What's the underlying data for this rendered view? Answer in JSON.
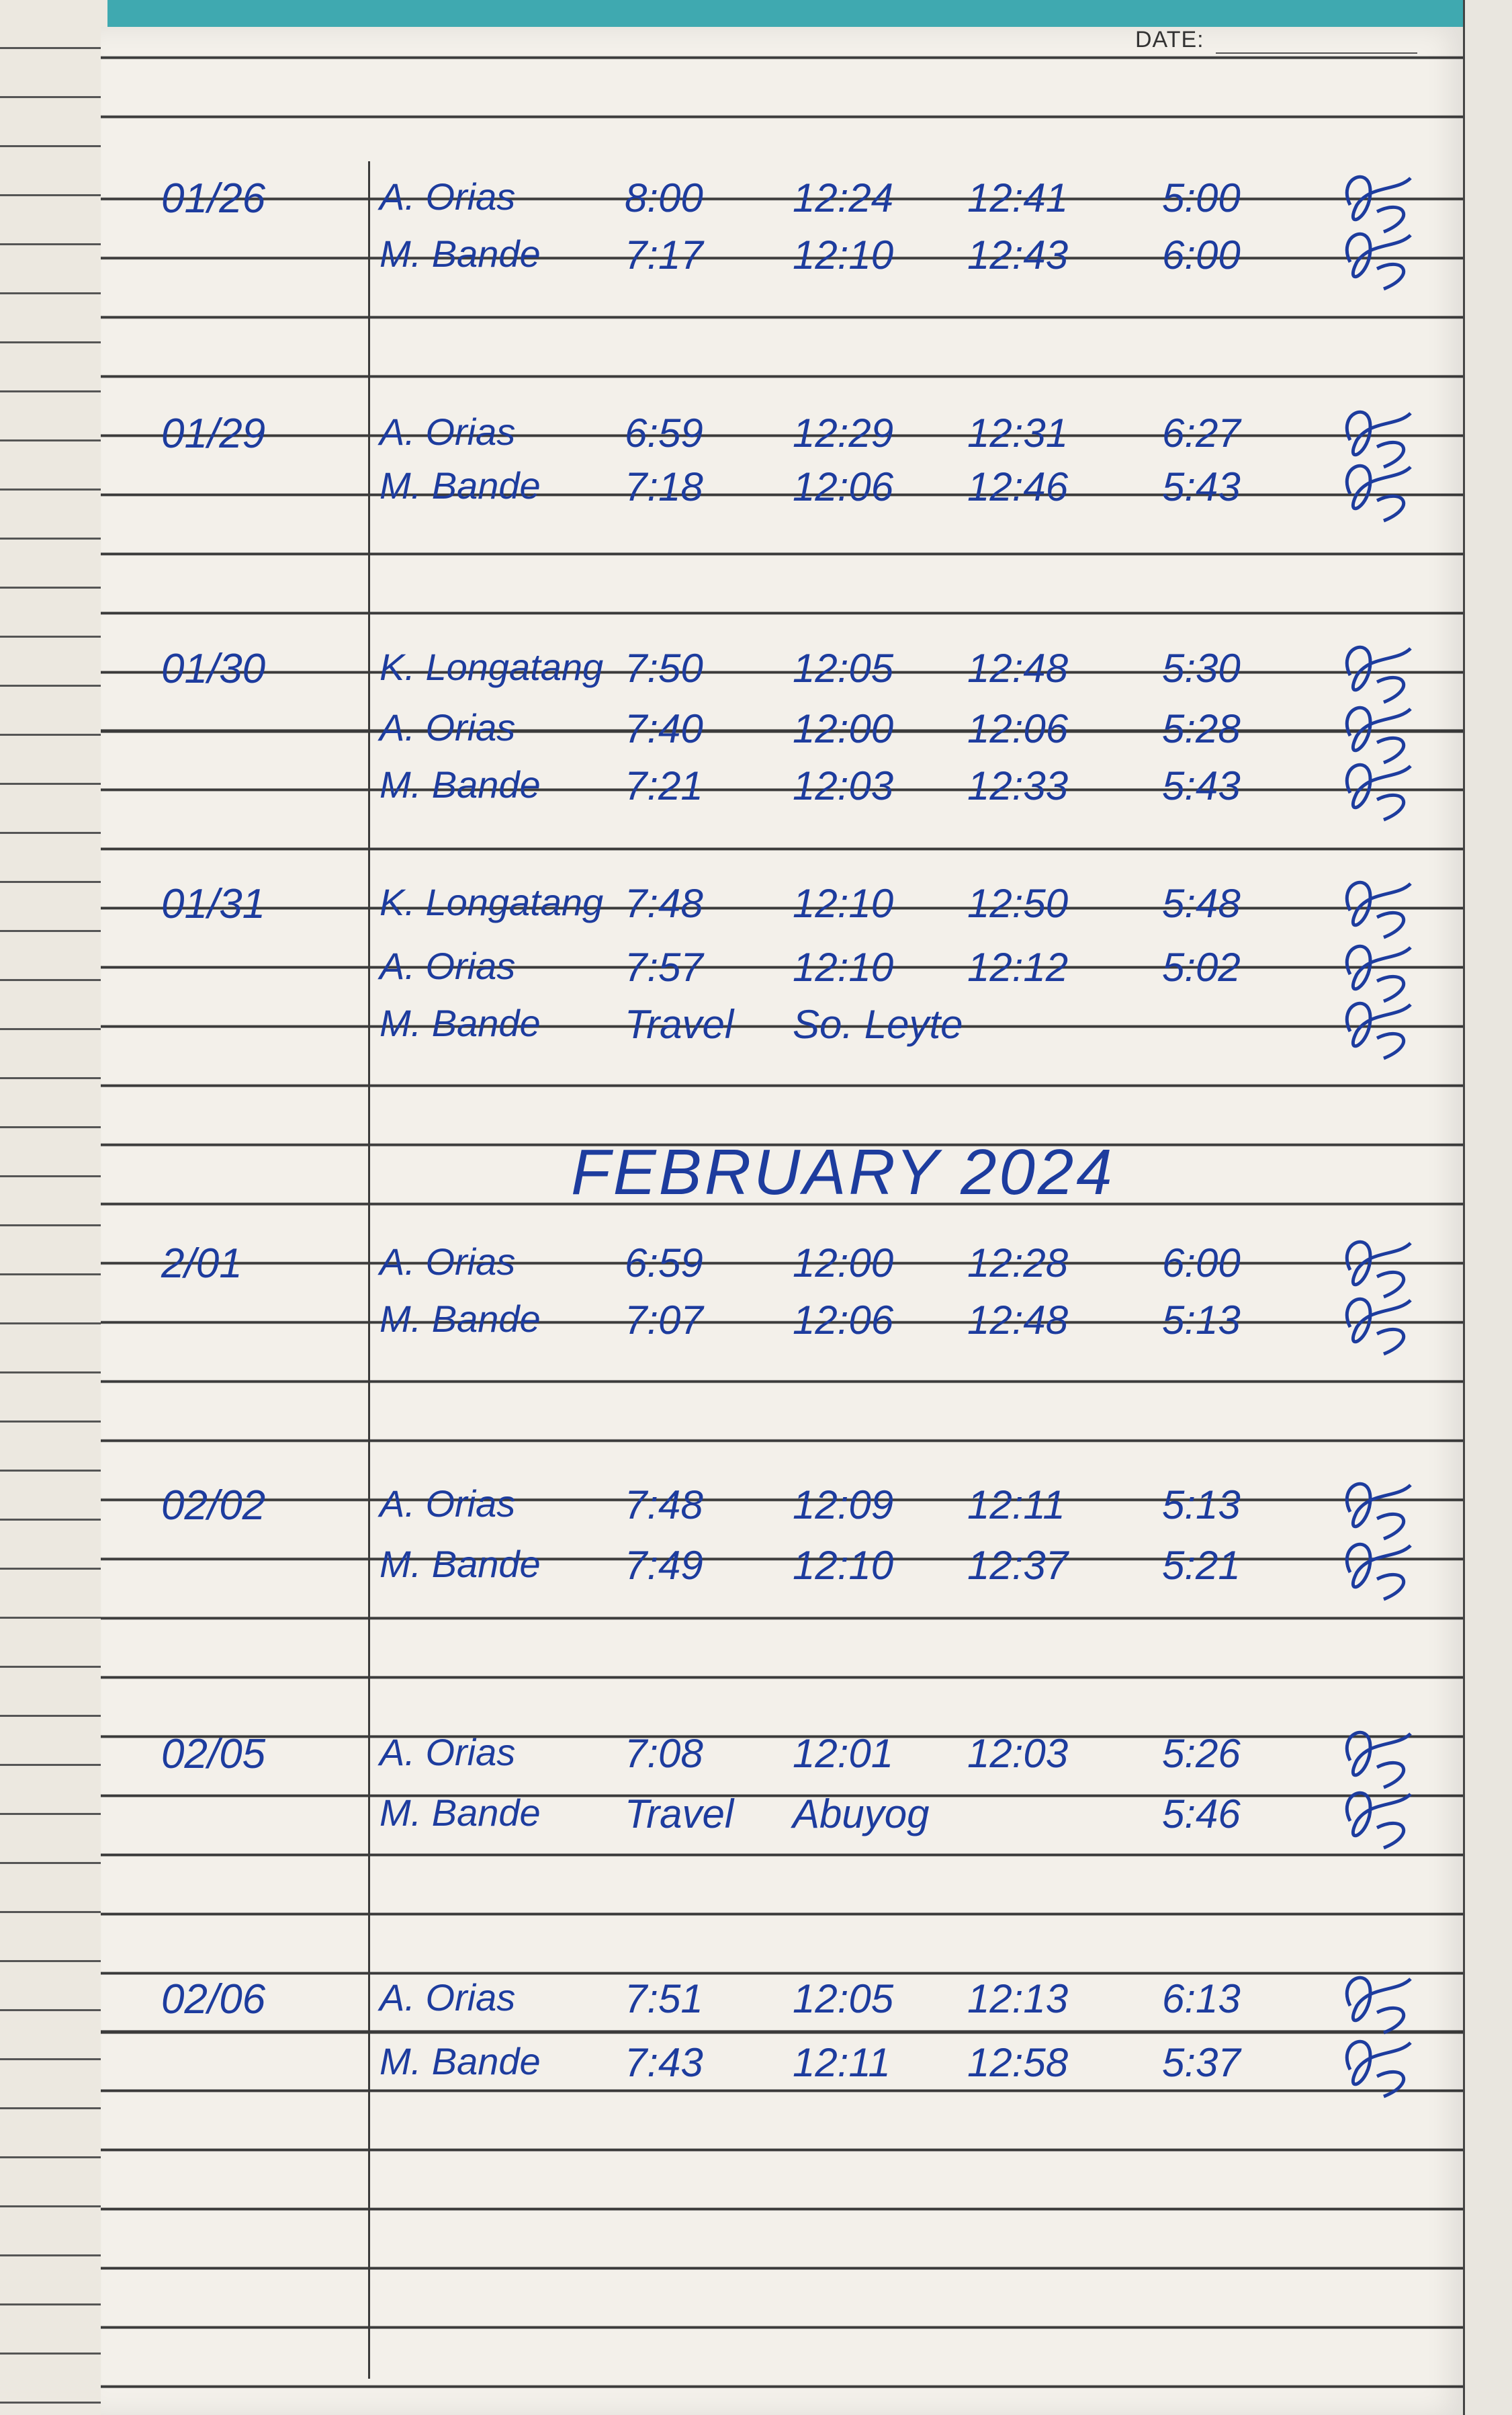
{
  "header": {
    "date_label": "DATE:"
  },
  "ink_color": "#1d3c9e",
  "entries": [
    {
      "date": "01/26",
      "rows": [
        {
          "name": "A. Orias",
          "times": [
            "8:00",
            "12:24",
            "12:41",
            "5:00"
          ]
        },
        {
          "name": "M. Bande",
          "times": [
            "7:17",
            "12:10",
            "12:43",
            "6:00"
          ]
        }
      ]
    },
    {
      "date": "01/29",
      "rows": [
        {
          "name": "A. Orias",
          "times": [
            "6:59",
            "12:29",
            "12:31",
            "6:27"
          ]
        },
        {
          "name": "M. Bande",
          "times": [
            "7:18",
            "12:06",
            "12:46",
            "5:43"
          ]
        }
      ]
    },
    {
      "date": "01/30",
      "rows": [
        {
          "name": "K. Longatang",
          "times": [
            "7:50",
            "12:05",
            "12:48",
            "5:30"
          ]
        },
        {
          "name": "A. Orias",
          "times": [
            "7:40",
            "12:00",
            "12:06",
            "5:28"
          ]
        },
        {
          "name": "M. Bande",
          "times": [
            "7:21",
            "12:03",
            "12:33",
            "5:43"
          ]
        }
      ]
    },
    {
      "date": "01/31",
      "rows": [
        {
          "name": "K. Longatang",
          "times": [
            "7:48",
            "12:10",
            "12:50",
            "5:48"
          ]
        },
        {
          "name": "A. Orias",
          "times": [
            "7:57",
            "12:10",
            "12:12",
            "5:02"
          ]
        },
        {
          "name": "M. Bande",
          "times": [
            "Travel",
            "So. Leyte",
            "",
            ""
          ]
        }
      ]
    },
    {
      "month": "FEBRUARY 2024"
    },
    {
      "date": "2/01",
      "rows": [
        {
          "name": "A. Orias",
          "times": [
            "6:59",
            "12:00",
            "12:28",
            "6:00"
          ]
        },
        {
          "name": "M. Bande",
          "times": [
            "7:07",
            "12:06",
            "12:48",
            "5:13"
          ]
        }
      ]
    },
    {
      "date": "02/02",
      "rows": [
        {
          "name": "A. Orias",
          "times": [
            "7:48",
            "12:09",
            "12:11",
            "5:13"
          ]
        },
        {
          "name": "M. Bande",
          "times": [
            "7:49",
            "12:10",
            "12:37",
            "5:21"
          ]
        }
      ]
    },
    {
      "date": "02/05",
      "rows": [
        {
          "name": "A. Orias",
          "times": [
            "7:08",
            "12:01",
            "12:03",
            "5:26"
          ]
        },
        {
          "name": "M. Bande",
          "times": [
            "Travel",
            "Abuyog",
            "",
            "5:46"
          ]
        }
      ]
    },
    {
      "date": "02/06",
      "rows": [
        {
          "name": "A. Orias",
          "times": [
            "7:51",
            "12:05",
            "12:13",
            "6:13"
          ]
        },
        {
          "name": "M. Bande",
          "times": [
            "7:43",
            "12:11",
            "12:58",
            "5:37"
          ]
        }
      ]
    }
  ]
}
